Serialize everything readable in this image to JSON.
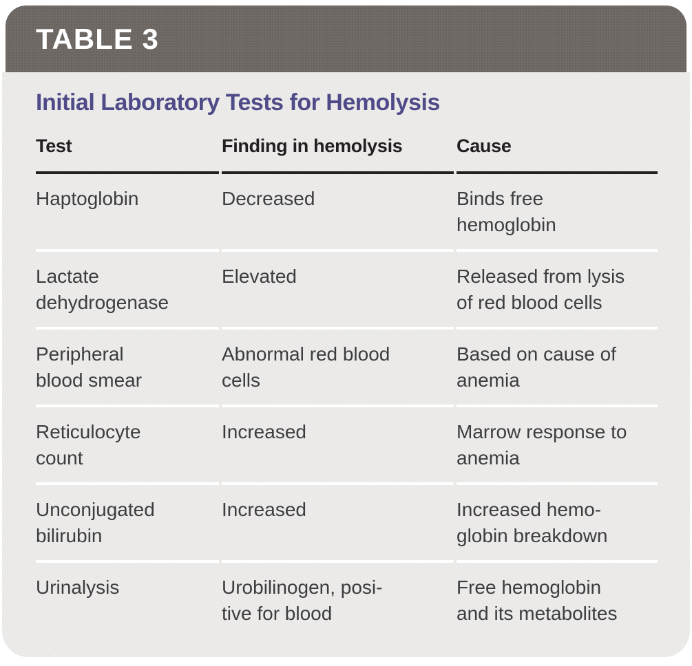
{
  "table_label": "TABLE 3",
  "title": "Initial Laboratory Tests for Hemolysis",
  "columns": [
    "Test",
    "Finding in hemolysis",
    "Cause"
  ],
  "rows": [
    [
      "Haptoglobin",
      "Decreased",
      "Binds free\nhemoglobin"
    ],
    [
      "Lactate\ndehydrogenase",
      "Elevated",
      "Released from lysis\nof red blood cells"
    ],
    [
      "Peripheral\nblood smear",
      "Abnormal red blood\ncells",
      "Based on cause of\nanemia"
    ],
    [
      "Reticulocyte\ncount",
      "Increased",
      "Marrow response to\nanemia"
    ],
    [
      "Unconjugated\nbilirubin",
      "Increased",
      "Increased hemo-\nglobin breakdown"
    ],
    [
      "Urinalysis",
      "Urobilinogen, posi-\ntive for blood",
      "Free hemoglobin\nand its metabolites"
    ]
  ],
  "colors": {
    "header_bar": "#6c6662",
    "panel_bg": "#e9e8e7",
    "title_text": "#4f4b88",
    "heading_text": "#231f20",
    "body_text": "#3d3c3e",
    "header_rule": "#231f20",
    "row_separator": "#ffffff"
  },
  "chart_data": {
    "type": "table",
    "table_label": "TABLE 3",
    "title": "Initial Laboratory Tests for Hemolysis",
    "columns": [
      "Test",
      "Finding in hemolysis",
      "Cause"
    ],
    "rows": [
      [
        "Haptoglobin",
        "Decreased",
        "Binds free hemoglobin"
      ],
      [
        "Lactate dehydrogenase",
        "Elevated",
        "Released from lysis of red blood cells"
      ],
      [
        "Peripheral blood smear",
        "Abnormal red blood cells",
        "Based on cause of anemia"
      ],
      [
        "Reticulocyte count",
        "Increased",
        "Marrow response to anemia"
      ],
      [
        "Unconjugated bilirubin",
        "Increased",
        "Increased hemoglobin breakdown"
      ],
      [
        "Urinalysis",
        "Urobilinogen, positive for blood",
        "Free hemoglobin and its metabolites"
      ]
    ]
  }
}
